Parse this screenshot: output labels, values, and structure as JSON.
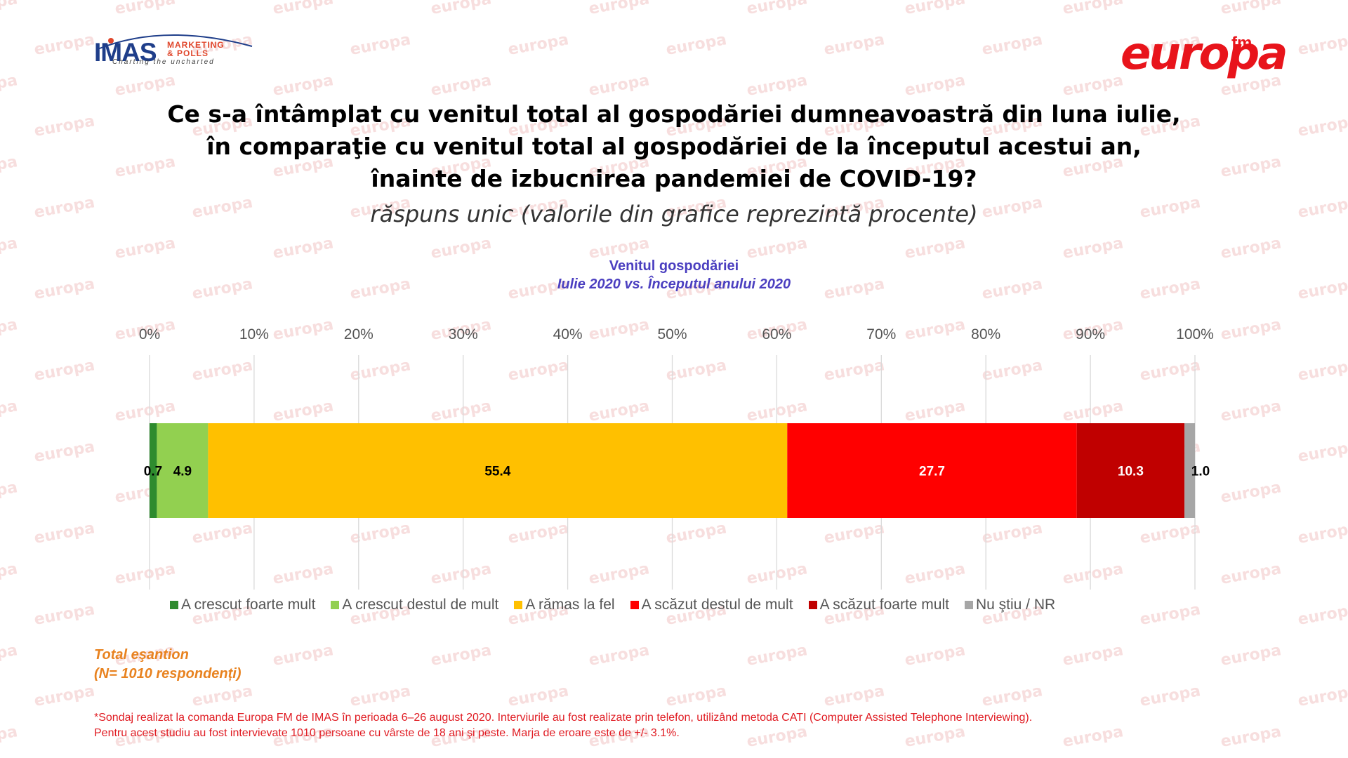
{
  "brand": {
    "imas_name": "IMAS",
    "imas_sub_line1": "MARKETING",
    "imas_sub_line2": "& POLLS",
    "imas_tagline": "Charting the uncharted",
    "europa_name": "europa",
    "europa_fm": "fm",
    "watermark_text": "europa"
  },
  "header": {
    "title_lines": [
      "Ce s-a întâmplat cu venitul total al gospodăriei dumneavoastră din luna iulie,",
      "în comparaţie cu venitul total al gospodăriei de la începutul acestui an,",
      "înainte de izbucnirea pandemiei de COVID-19?"
    ],
    "note": "răspuns unic (valorile din grafice reprezintă procente)"
  },
  "chart_data": {
    "type": "bar",
    "orientation": "horizontal",
    "stacked": true,
    "title": "Venitul gospodăriei",
    "subtitle": "Iulie 2020 vs. Începutul anului  2020",
    "xlim": [
      0,
      100
    ],
    "xticks": [
      "0%",
      "10%",
      "20%",
      "30%",
      "40%",
      "50%",
      "60%",
      "70%",
      "80%",
      "90%",
      "100%"
    ],
    "grid": true,
    "legend_position": "bottom",
    "series": [
      {
        "name": "A crescut foarte mult",
        "value": 0.7,
        "label": "0.7",
        "color": "#2e8b2e",
        "label_color": "#000000"
      },
      {
        "name": "A crescut destul de mult",
        "value": 4.9,
        "label": "4.9",
        "color": "#92d050",
        "label_color": "#000000"
      },
      {
        "name": "A rămas la fel",
        "value": 55.4,
        "label": "55.4",
        "color": "#ffc000",
        "label_color": "#000000"
      },
      {
        "name": "A scăzut destul de mult",
        "value": 27.7,
        "label": "27.7",
        "color": "#ff0000",
        "label_color": "#ffffff"
      },
      {
        "name": "A scăzut foarte mult",
        "value": 10.3,
        "label": "10.3",
        "color": "#c00000",
        "label_color": "#ffffff"
      },
      {
        "name": "Nu ştiu / NR",
        "value": 1.0,
        "label": "1.0",
        "color": "#a6a6a6",
        "label_color": "#000000"
      }
    ]
  },
  "sample": {
    "line1": "Total eşantion",
    "line2": "(N= 1010 respondenți)"
  },
  "footnote": {
    "line1": "*Sondaj realizat la comanda Europa FM de IMAS în perioada  6–26 august 2020. Interviurile au fost realizate prin telefon, utilizând metoda CATI (Computer Assisted Telephone Interviewing).",
    "line2": "Pentru acest studiu au fost intervievate 1010 persoane cu vârste de 18 ani şi peste. Marja de eroare este de +/- 3.1%."
  }
}
